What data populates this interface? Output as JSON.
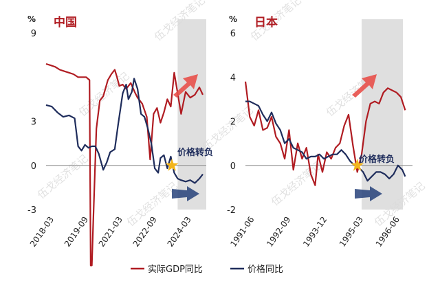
{
  "watermark": "伍戈经济笔记",
  "colors": {
    "gdp": "#b01c22",
    "price": "#1f2d5c",
    "shade": "#d9d9d9",
    "arrow_red": "#e8504a",
    "arrow_blue": "#27427a",
    "star": "#f3b51b"
  },
  "legend": {
    "gdp": "实际GDP同比",
    "price": "价格同比"
  },
  "chart_data": [
    {
      "type": "line",
      "title": "中国",
      "unit": "%",
      "ylim": [
        -3,
        9
      ],
      "yticks": [
        "9",
        "3",
        "0",
        "-3"
      ],
      "yticks_val": [
        9,
        3,
        0,
        -3
      ],
      "xlim": [
        2018.0,
        2025.0
      ],
      "xticks": [
        "2018-03",
        "2019-09",
        "2021-03",
        "2022-09",
        "2024-03"
      ],
      "xticks_val": [
        2018.17,
        2019.67,
        2021.17,
        2022.67,
        2024.17
      ],
      "shaded_x": [
        2023.75,
        2025.0
      ],
      "annotation": {
        "text": "价格转负",
        "x": 2023.5,
        "y": 0
      },
      "series": [
        {
          "key": "gdp",
          "name": "实际GDP同比",
          "x": [
            2018.0,
            2018.2,
            2018.4,
            2018.6,
            2018.8,
            2019.0,
            2019.2,
            2019.4,
            2019.6,
            2019.75,
            2019.9,
            2019.95,
            2020.0,
            2020.1,
            2020.2,
            2020.35,
            2020.5,
            2020.7,
            2020.85,
            2021.0,
            2021.1,
            2021.2,
            2021.35,
            2021.5,
            2021.7,
            2021.9,
            2022.0,
            2022.2,
            2022.4,
            2022.55,
            2022.7,
            2022.85,
            2023.0,
            2023.15,
            2023.3,
            2023.45,
            2023.6,
            2023.75,
            2023.9,
            2024.1,
            2024.3,
            2024.5,
            2024.7,
            2024.85
          ],
          "y": [
            6.9,
            6.8,
            6.7,
            6.5,
            6.4,
            6.3,
            6.2,
            6.0,
            6.0,
            6.0,
            5.8,
            -6.8,
            -6.8,
            -2,
            2.5,
            4.4,
            4.7,
            5.8,
            6.2,
            6.5,
            6.0,
            5.4,
            5.5,
            5.2,
            5.6,
            4.9,
            4.6,
            4.2,
            3.3,
            0.4,
            3.5,
            3.9,
            2.9,
            3.6,
            4.5,
            4.0,
            6.3,
            4.9,
            3.5,
            5.0,
            4.6,
            4.8,
            5.3,
            4.8
          ]
        },
        {
          "key": "price",
          "name": "价格同比",
          "x": [
            2018.0,
            2018.25,
            2018.5,
            2018.75,
            2019.0,
            2019.25,
            2019.4,
            2019.55,
            2019.7,
            2019.85,
            2020.0,
            2020.15,
            2020.3,
            2020.5,
            2020.65,
            2020.8,
            2021.0,
            2021.15,
            2021.35,
            2021.5,
            2021.6,
            2021.75,
            2021.85,
            2022.0,
            2022.15,
            2022.3,
            2022.45,
            2022.6,
            2022.75,
            2022.9,
            2023.0,
            2023.15,
            2023.3,
            2023.45,
            2023.6,
            2023.75,
            2023.9,
            2024.1,
            2024.3,
            2024.5,
            2024.7,
            2024.85
          ],
          "y": [
            4.1,
            4.0,
            3.6,
            3.3,
            3.4,
            3.2,
            1.3,
            1.0,
            1.4,
            1.2,
            1.3,
            1.3,
            0.8,
            -0.3,
            0.2,
            0.9,
            1.1,
            2.8,
            4.9,
            5.5,
            4.5,
            5.0,
            5.9,
            5.2,
            3.5,
            3.3,
            2.5,
            1.5,
            -0.2,
            -0.5,
            0.5,
            0.7,
            -0.2,
            0.6,
            -0.5,
            -0.9,
            -1.0,
            -1.1,
            -1.0,
            -1.2,
            -0.9,
            -0.6
          ]
        }
      ]
    },
    {
      "type": "line",
      "title": "日本",
      "unit": "%",
      "ylim": [
        -2,
        6
      ],
      "yticks": [
        "6",
        "4",
        "2",
        "0",
        "-2"
      ],
      "yticks_val": [
        6,
        4,
        2,
        0,
        -2
      ],
      "xlim": [
        1991.25,
        1997.0
      ],
      "xticks": [
        "1991-06",
        "1992-09",
        "1993-12",
        "1995-03",
        "1996-06"
      ],
      "xticks_val": [
        1991.42,
        1992.67,
        1993.92,
        1995.17,
        1996.42
      ],
      "shaded_x": [
        1995.25,
        1996.67
      ],
      "annotation": {
        "text": "价格转负",
        "x": 1995.1,
        "y": 0
      },
      "series": [
        {
          "key": "gdp",
          "name": "实际GDP同比",
          "x": [
            1991.25,
            1991.4,
            1991.55,
            1991.7,
            1991.85,
            1992.0,
            1992.15,
            1992.3,
            1992.45,
            1992.6,
            1992.75,
            1992.9,
            1993.05,
            1993.2,
            1993.35,
            1993.5,
            1993.65,
            1993.75,
            1993.9,
            1994.05,
            1994.2,
            1994.35,
            1994.5,
            1994.65,
            1994.8,
            1994.95,
            1995.1,
            1995.25,
            1995.4,
            1995.55,
            1995.7,
            1995.85,
            1996.0,
            1996.15,
            1996.3,
            1996.45,
            1996.6,
            1996.75
          ],
          "y": [
            3.8,
            2.2,
            1.8,
            2.5,
            1.6,
            1.7,
            2.2,
            1.3,
            1.0,
            0.3,
            1.6,
            -0.2,
            1.0,
            0.3,
            0.8,
            -0.4,
            -0.9,
            0.5,
            -0.3,
            0.6,
            0.3,
            0.8,
            1.0,
            1.8,
            2.3,
            0.9,
            -0.3,
            0.5,
            2.0,
            2.8,
            2.9,
            2.8,
            3.3,
            3.5,
            3.4,
            3.3,
            3.1,
            2.5
          ]
        },
        {
          "key": "price",
          "name": "价格同比",
          "x": [
            1991.25,
            1991.4,
            1991.55,
            1991.7,
            1991.85,
            1992.0,
            1992.15,
            1992.3,
            1992.45,
            1992.6,
            1992.75,
            1992.9,
            1993.05,
            1993.2,
            1993.35,
            1993.5,
            1993.65,
            1993.8,
            1993.95,
            1994.1,
            1994.25,
            1994.4,
            1994.55,
            1994.7,
            1994.85,
            1995.0,
            1995.15,
            1995.3,
            1995.45,
            1995.6,
            1995.75,
            1995.9,
            1996.05,
            1996.2,
            1996.35,
            1996.5,
            1996.65,
            1996.75
          ],
          "y": [
            2.9,
            2.9,
            2.8,
            2.7,
            2.3,
            2.0,
            2.4,
            1.9,
            1.6,
            1.0,
            1.2,
            0.8,
            0.7,
            0.6,
            0.3,
            0.4,
            0.4,
            0.5,
            0.3,
            0.4,
            0.5,
            0.5,
            0.7,
            0.5,
            0.2,
            0.0,
            -0.1,
            -0.3,
            -0.7,
            -0.5,
            -0.3,
            -0.3,
            -0.4,
            -0.6,
            -0.4,
            0.0,
            -0.2,
            -0.5
          ]
        }
      ]
    }
  ]
}
